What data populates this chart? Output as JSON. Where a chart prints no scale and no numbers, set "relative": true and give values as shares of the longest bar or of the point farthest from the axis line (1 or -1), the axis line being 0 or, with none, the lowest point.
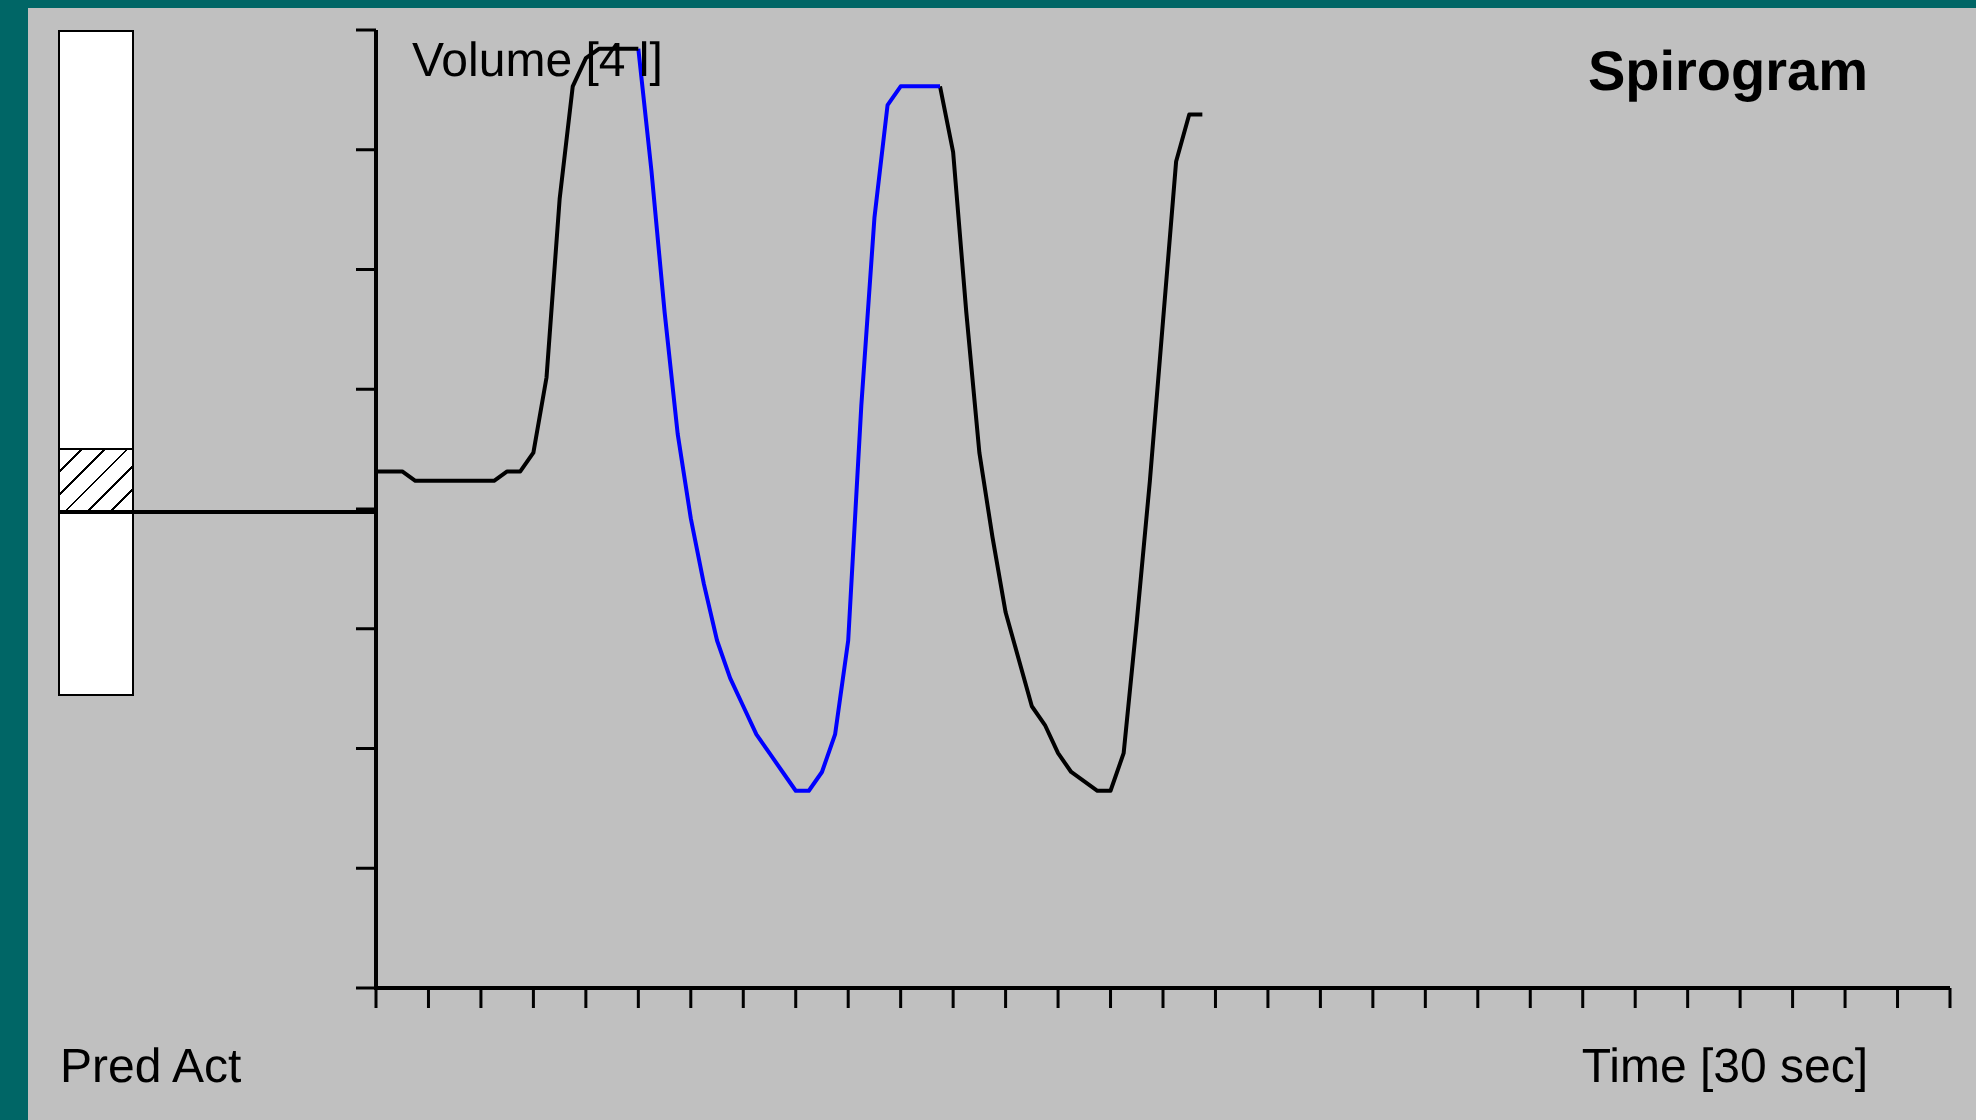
{
  "chart_data": {
    "type": "line",
    "title": "Spirogram",
    "xlabel": "Time [30 sec]",
    "ylabel": "Volume [4 l]",
    "annotations": [
      "Pred Act"
    ],
    "relative": true,
    "categories": [
      null,
      null,
      null,
      null,
      null,
      null,
      null,
      null,
      null,
      null,
      null,
      null,
      null,
      null,
      null,
      null,
      null,
      null,
      null,
      null,
      null,
      null,
      null,
      null,
      null,
      null,
      null,
      null,
      null,
      null,
      null,
      null,
      null,
      null,
      null,
      null,
      null,
      null,
      null,
      null,
      null,
      null,
      null,
      null,
      null,
      null,
      null,
      null,
      null,
      null,
      null,
      null,
      null,
      null,
      null,
      null,
      null,
      null,
      null,
      null,
      null,
      null,
      null,
      null,
      null,
      null,
      null,
      null,
      null,
      null,
      null,
      null,
      null,
      null,
      null,
      null,
      null,
      null,
      null,
      null,
      null,
      null,
      null,
      null,
      null,
      null,
      null,
      null,
      null,
      null,
      null,
      null,
      null,
      null,
      null,
      null,
      null,
      null,
      null,
      null,
      null,
      null,
      null,
      null,
      null,
      null,
      null,
      null,
      null,
      null,
      null,
      null,
      null,
      null,
      null,
      null,
      null,
      null,
      null,
      null,
      null
    ],
    "series": [
      {
        "color": "#000000",
        "values": [
          0.55,
          0.55,
          0.55,
          0.54,
          0.54,
          0.54,
          0.54,
          0.54,
          0.54,
          0.54,
          0.55,
          0.55,
          0.57,
          0.65,
          0.84,
          0.96,
          0.99,
          1.0,
          1.0,
          1.0,
          1.0,
          null,
          null,
          null,
          null,
          null,
          null,
          null,
          null,
          null,
          null,
          null,
          null,
          null,
          null,
          null,
          null,
          null,
          null,
          null,
          null,
          null,
          null,
          null,
          null,
          null,
          null,
          null,
          null,
          null,
          null,
          null,
          null,
          null,
          null,
          null,
          null,
          null,
          null,
          null,
          null,
          null,
          null,
          null,
          null,
          null,
          null,
          null,
          null,
          null,
          null,
          null,
          null,
          null,
          null,
          null,
          null,
          null,
          null,
          null,
          null,
          null,
          null,
          null,
          null,
          null,
          null,
          null,
          null,
          null,
          null,
          null,
          null,
          null,
          null,
          null,
          null,
          null,
          null,
          null,
          null,
          null,
          null,
          null,
          null,
          null,
          null,
          null,
          null,
          null,
          null,
          null,
          null,
          null,
          null,
          null,
          null,
          null,
          null,
          null,
          null
        ]
      },
      {
        "color": "#0000ff",
        "values": [
          null,
          null,
          null,
          null,
          null,
          null,
          null,
          null,
          null,
          null,
          null,
          null,
          null,
          null,
          null,
          null,
          null,
          null,
          null,
          null,
          1.0,
          0.87,
          0.72,
          0.59,
          0.5,
          0.43,
          0.37,
          0.33,
          0.3,
          0.27,
          0.25,
          0.23,
          0.21,
          0.21,
          0.23,
          0.27,
          0.37,
          0.62,
          0.82,
          0.94,
          0.96,
          0.96,
          0.96,
          0.96,
          null,
          null,
          null,
          null,
          null,
          null,
          null,
          null,
          null,
          null,
          null,
          null,
          null,
          null,
          null,
          null,
          null,
          null,
          null,
          null,
          null,
          null,
          null,
          null,
          null,
          null,
          null,
          null,
          null,
          null,
          null,
          null,
          null,
          null,
          null,
          null,
          null,
          null,
          null,
          null,
          null,
          null,
          null,
          null,
          null,
          null,
          null,
          null,
          null,
          null,
          null,
          null,
          null,
          null,
          null,
          null,
          null,
          null,
          null,
          null,
          null,
          null,
          null,
          null,
          null,
          null,
          null,
          null,
          null,
          null,
          null,
          null,
          null,
          null,
          null,
          null,
          null
        ]
      },
      {
        "color": "#000000",
        "values": [
          null,
          null,
          null,
          null,
          null,
          null,
          null,
          null,
          null,
          null,
          null,
          null,
          null,
          null,
          null,
          null,
          null,
          null,
          null,
          null,
          null,
          null,
          null,
          null,
          null,
          null,
          null,
          null,
          null,
          null,
          null,
          null,
          null,
          null,
          null,
          null,
          null,
          null,
          null,
          null,
          null,
          null,
          null,
          0.96,
          0.89,
          0.72,
          0.57,
          0.48,
          0.4,
          0.35,
          0.3,
          0.28,
          0.25,
          0.23,
          0.22,
          0.21,
          0.21,
          0.25,
          0.39,
          0.54,
          0.71,
          0.88,
          0.93,
          0.93,
          null,
          null,
          null,
          null,
          null,
          null,
          null,
          null,
          null,
          null,
          null,
          null,
          null,
          null,
          null,
          null,
          null,
          null,
          null,
          null,
          null,
          null,
          null,
          null,
          null,
          null,
          null,
          null,
          null,
          null,
          null,
          null,
          null,
          null,
          null,
          null,
          null,
          null,
          null,
          null,
          null,
          null,
          null,
          null,
          null,
          null,
          null,
          null,
          null,
          null,
          null,
          null,
          null,
          null,
          null,
          null,
          null
        ]
      }
    ]
  }
}
